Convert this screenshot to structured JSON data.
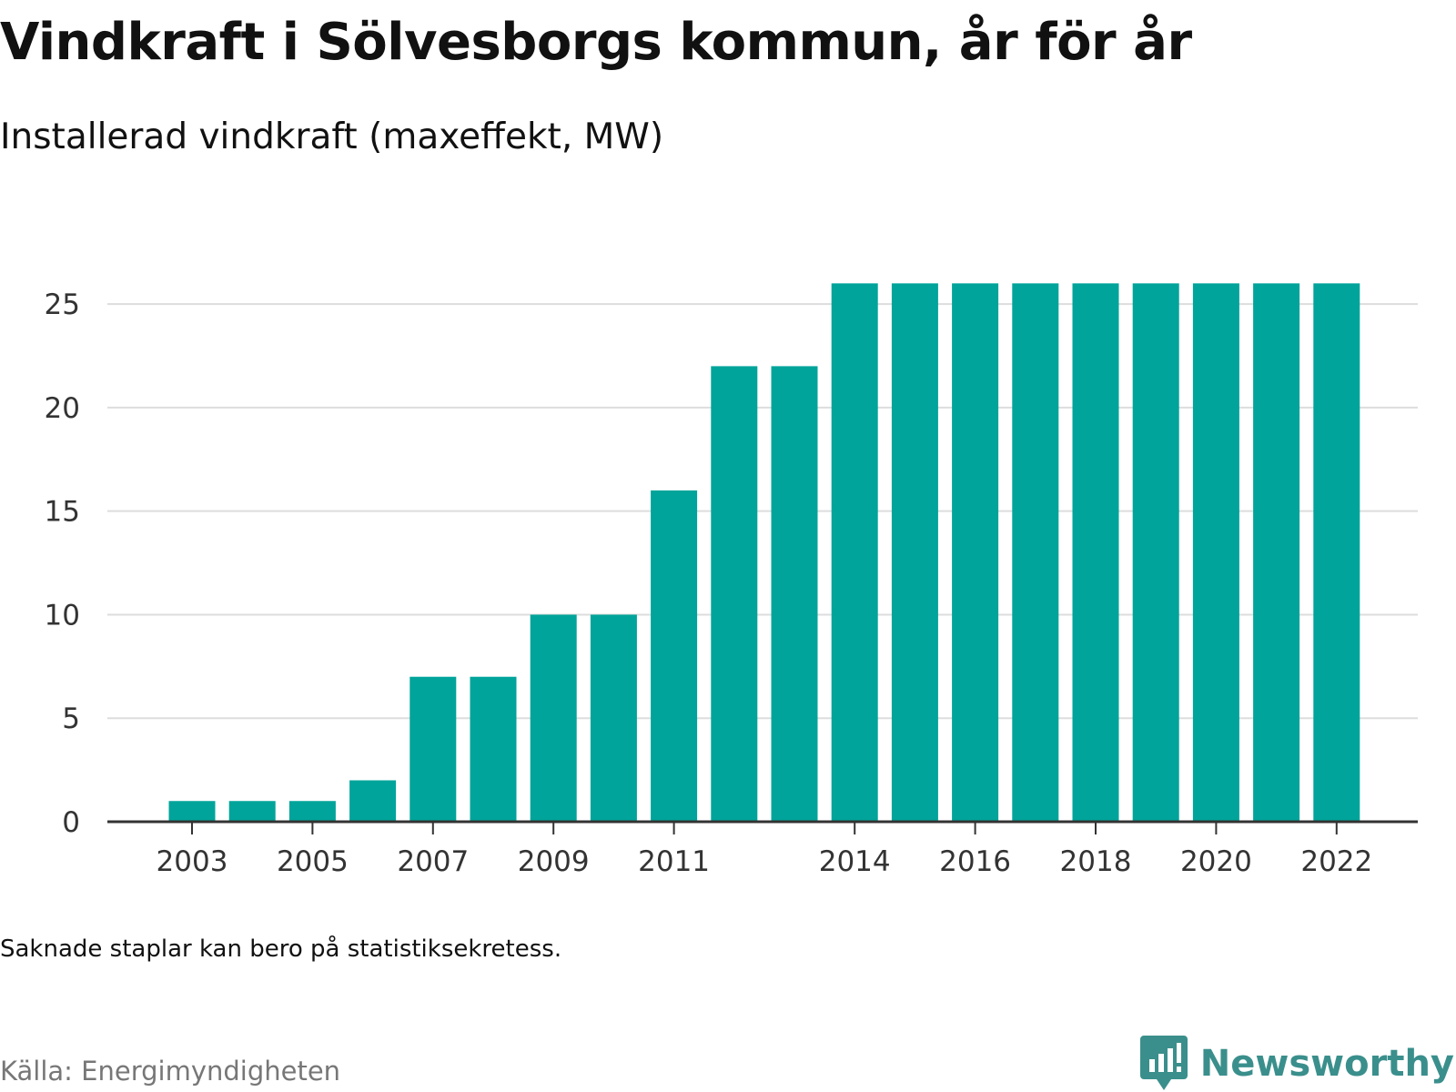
{
  "header": {
    "title": "Vindkraft i Sölvesborgs kommun, år för år",
    "subtitle": "Installerad vindkraft (maxeffekt, MW)"
  },
  "footer": {
    "note": "Saknade staplar kan bero på statistiksekretess.",
    "source": "Källa: Energimyndigheten",
    "brand": "Newsworthy"
  },
  "colors": {
    "bar": "#00a49a",
    "grid": "#dddddd",
    "axis": "#333333",
    "brand": "#3a8f8c"
  },
  "chart_data": {
    "type": "bar",
    "title": "Vindkraft i Sölvesborgs kommun, år för år",
    "subtitle": "Installerad vindkraft (maxeffekt, MW)",
    "xlabel": "",
    "ylabel": "",
    "categories": [
      "2003",
      "2004",
      "2005",
      "2006",
      "2007",
      "2008",
      "2009",
      "2010",
      "2011",
      "2012",
      "2013",
      "2014",
      "2015",
      "2016",
      "2017",
      "2018",
      "2019",
      "2020",
      "2021",
      "2022"
    ],
    "values": [
      1,
      1,
      1,
      2,
      7,
      7,
      10,
      10,
      16,
      22,
      22,
      26,
      26,
      26,
      26,
      26,
      26,
      26,
      26,
      26
    ],
    "x_tick_labels": [
      "2003",
      "2005",
      "2007",
      "2009",
      "2011",
      "2014",
      "2016",
      "2018",
      "2020",
      "2022"
    ],
    "y_ticks": [
      0,
      5,
      10,
      15,
      20,
      25
    ],
    "ylim": [
      0,
      26.5
    ],
    "grid": true,
    "legend": "none"
  }
}
